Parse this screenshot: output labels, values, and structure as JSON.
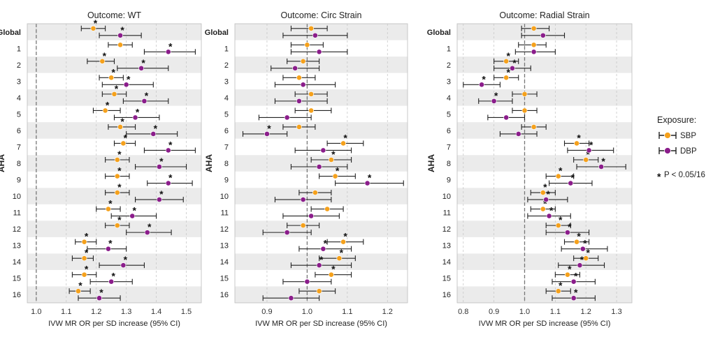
{
  "colors": {
    "sbp": "#f5a11c",
    "dbp": "#8b1d8b",
    "band": "#ebebeb",
    "grid": "#c8c8c8"
  },
  "legend": {
    "title": "Exposure:",
    "sbp_label": "SBP",
    "dbp_label": "DBP",
    "note_star": "*",
    "note_text": "P < 0.05/16"
  },
  "chart_data": [
    {
      "type": "forest",
      "title": "Outcome: WT",
      "xlabel": "IVW MR OR per SD increase (95% CI)",
      "ylabel": "AHA",
      "xlim": [
        0.97,
        1.55
      ],
      "xticks": [
        1.0,
        1.1,
        1.2,
        1.3,
        1.4,
        1.5
      ],
      "xtick_labels": [
        "1.0",
        "1.1",
        "1.2",
        "1.3",
        "1.4",
        "1.5"
      ],
      "reference_line": 1.0,
      "categories": [
        "Global",
        "1",
        "2",
        "3",
        "4",
        "5",
        "6",
        "7",
        "8",
        "9",
        "10",
        "11",
        "12",
        "13",
        "14",
        "15",
        "16"
      ],
      "series": [
        {
          "name": "SBP",
          "est": [
            1.19,
            1.28,
            1.22,
            1.25,
            1.26,
            1.23,
            1.28,
            1.29,
            1.27,
            1.27,
            1.27,
            1.24,
            1.27,
            1.16,
            1.16,
            1.16,
            1.14
          ],
          "lo": [
            1.15,
            1.24,
            1.17,
            1.21,
            1.22,
            1.19,
            1.24,
            1.26,
            1.23,
            1.23,
            1.23,
            1.2,
            1.23,
            1.13,
            1.12,
            1.12,
            1.11
          ],
          "hi": [
            1.23,
            1.32,
            1.26,
            1.29,
            1.3,
            1.28,
            1.33,
            1.33,
            1.31,
            1.31,
            1.31,
            1.28,
            1.31,
            1.2,
            1.19,
            1.2,
            1.18
          ],
          "sig": [
            true,
            false,
            true,
            true,
            true,
            true,
            true,
            true,
            true,
            true,
            true,
            true,
            true,
            true,
            true,
            true,
            true
          ]
        },
        {
          "name": "DBP",
          "est": [
            1.28,
            1.44,
            1.35,
            1.3,
            1.36,
            1.33,
            1.39,
            1.44,
            1.41,
            1.44,
            1.41,
            1.32,
            1.37,
            1.24,
            1.29,
            1.25,
            1.21
          ],
          "lo": [
            1.21,
            1.36,
            1.27,
            1.22,
            1.29,
            1.26,
            1.3,
            1.36,
            1.33,
            1.37,
            1.33,
            1.25,
            1.3,
            1.17,
            1.21,
            1.18,
            1.14
          ],
          "hi": [
            1.35,
            1.53,
            1.44,
            1.39,
            1.44,
            1.41,
            1.47,
            1.53,
            1.5,
            1.52,
            1.49,
            1.4,
            1.45,
            1.3,
            1.36,
            1.32,
            1.28
          ],
          "sig": [
            true,
            true,
            true,
            true,
            true,
            true,
            true,
            true,
            true,
            true,
            true,
            true,
            true,
            true,
            true,
            true,
            true
          ]
        }
      ]
    },
    {
      "type": "forest",
      "title": "Outcome: Circ Strain",
      "xlabel": "IVW MR OR per SD increase (95% CI)",
      "ylabel": "AHA",
      "xlim": [
        0.82,
        1.25
      ],
      "xticks": [
        0.9,
        1.0,
        1.1,
        1.2
      ],
      "xtick_labels": [
        "0.9",
        "1.0",
        "1.1",
        "1.2"
      ],
      "reference_line": 1.0,
      "categories": [
        "Global",
        "1",
        "2",
        "3",
        "4",
        "5",
        "6",
        "7",
        "8",
        "9",
        "10",
        "11",
        "12",
        "13",
        "14",
        "15",
        "16"
      ],
      "series": [
        {
          "name": "SBP",
          "est": [
            1.01,
            1.0,
            0.99,
            0.98,
            1.01,
            1.01,
            0.98,
            1.09,
            1.06,
            1.07,
            1.02,
            1.05,
            0.99,
            1.09,
            1.08,
            1.06,
            1.03
          ],
          "lo": [
            0.96,
            0.96,
            0.95,
            0.94,
            0.97,
            0.97,
            0.94,
            1.05,
            1.01,
            1.03,
            0.98,
            1.01,
            0.95,
            1.05,
            1.03,
            1.02,
            0.98
          ],
          "hi": [
            1.05,
            1.04,
            1.03,
            1.02,
            1.05,
            1.06,
            1.02,
            1.14,
            1.11,
            1.12,
            1.06,
            1.09,
            1.03,
            1.14,
            1.12,
            1.11,
            1.07
          ],
          "sig": [
            false,
            false,
            false,
            false,
            false,
            false,
            false,
            true,
            true,
            true,
            false,
            false,
            false,
            true,
            true,
            true,
            false
          ]
        },
        {
          "name": "DBP",
          "est": [
            1.02,
            1.03,
            0.97,
            0.99,
            0.98,
            0.95,
            0.9,
            1.04,
            1.03,
            1.15,
            0.99,
            1.01,
            0.95,
            1.04,
            1.03,
            1.0,
            0.96
          ],
          "lo": [
            0.94,
            0.96,
            0.91,
            0.92,
            0.92,
            0.88,
            0.84,
            0.97,
            0.96,
            1.07,
            0.92,
            0.94,
            0.89,
            0.98,
            0.96,
            0.94,
            0.89
          ],
          "hi": [
            1.1,
            1.1,
            1.03,
            1.07,
            1.05,
            1.01,
            0.95,
            1.11,
            1.1,
            1.24,
            1.06,
            1.08,
            1.01,
            1.11,
            1.11,
            1.06,
            1.03
          ],
          "sig": [
            false,
            false,
            false,
            false,
            false,
            false,
            true,
            false,
            false,
            true,
            false,
            false,
            false,
            true,
            true,
            false,
            false
          ]
        }
      ]
    },
    {
      "type": "forest",
      "title": "Outcome: Radial Strain",
      "xlabel": "IVW MR OR per SD increase (95% CI)",
      "ylabel": "AHA",
      "xlim": [
        0.78,
        1.35
      ],
      "xticks": [
        0.8,
        0.9,
        1.0,
        1.1,
        1.2,
        1.3
      ],
      "xtick_labels": [
        "0.8",
        "0.9",
        "1.0",
        "1.1",
        "1.2",
        "1.3"
      ],
      "reference_line": 1.0,
      "categories": [
        "Global",
        "1",
        "2",
        "3",
        "4",
        "5",
        "6",
        "7",
        "8",
        "9",
        "10",
        "11",
        "12",
        "13",
        "14",
        "15",
        "16"
      ],
      "series": [
        {
          "name": "SBP",
          "est": [
            1.03,
            1.03,
            0.94,
            0.94,
            1.0,
            1.0,
            1.03,
            1.17,
            1.2,
            1.11,
            1.06,
            1.06,
            1.11,
            1.17,
            1.2,
            1.14,
            1.11
          ],
          "lo": [
            0.99,
            0.98,
            0.9,
            0.9,
            0.96,
            0.96,
            0.99,
            1.13,
            1.16,
            1.07,
            1.02,
            1.02,
            1.07,
            1.13,
            1.16,
            1.1,
            1.07
          ],
          "hi": [
            1.08,
            1.07,
            0.98,
            0.98,
            1.04,
            1.04,
            1.07,
            1.21,
            1.24,
            1.16,
            1.1,
            1.1,
            1.15,
            1.21,
            1.24,
            1.18,
            1.15
          ],
          "sig": [
            false,
            false,
            true,
            true,
            false,
            false,
            false,
            true,
            true,
            true,
            true,
            true,
            true,
            true,
            true,
            true,
            true
          ]
        },
        {
          "name": "DBP",
          "est": [
            1.06,
            1.03,
            0.96,
            0.86,
            0.9,
            0.94,
            0.98,
            1.21,
            1.25,
            1.15,
            1.07,
            1.08,
            1.14,
            1.19,
            1.18,
            1.16,
            1.16
          ],
          "lo": [
            0.99,
            0.97,
            0.9,
            0.8,
            0.85,
            0.88,
            0.92,
            1.14,
            1.17,
            1.08,
            1.01,
            1.01,
            1.07,
            1.12,
            1.11,
            1.09,
            1.09
          ],
          "hi": [
            1.13,
            1.1,
            1.02,
            0.92,
            0.96,
            1.0,
            1.04,
            1.29,
            1.33,
            1.22,
            1.14,
            1.15,
            1.21,
            1.27,
            1.26,
            1.23,
            1.23
          ],
          "sig": [
            false,
            false,
            true,
            true,
            true,
            false,
            false,
            true,
            true,
            true,
            true,
            true,
            true,
            true,
            true,
            true,
            true
          ]
        }
      ]
    }
  ]
}
